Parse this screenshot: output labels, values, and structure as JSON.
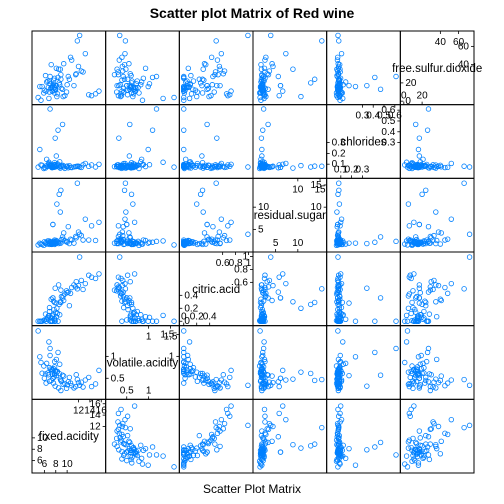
{
  "chart_data": {
    "type": "scatter",
    "title": "Scatter plot Matrix of Red wine",
    "xlabel": "Scatter Plot Matrix",
    "point_color": "#0080ff",
    "grid": false,
    "legend": "none",
    "variables": [
      {
        "name": "fixed.acidity",
        "range": [
          4.6,
          16.0
        ],
        "ticks_low": [
          6,
          8,
          10
        ],
        "ticks_high": [
          12,
          14,
          16
        ]
      },
      {
        "name": "volatile.acidity",
        "range": [
          0.12,
          1.6
        ],
        "ticks_low": [
          0.5,
          1.0
        ],
        "ticks_high": [
          1.0,
          1.5
        ]
      },
      {
        "name": "citric.acid",
        "range": [
          0.0,
          1.0
        ],
        "ticks_low": [
          0.0,
          0.2,
          0.4
        ],
        "ticks_high": [
          0.6,
          0.8,
          1.0
        ]
      },
      {
        "name": "residual.sugar",
        "range": [
          0.9,
          15.5
        ],
        "ticks_low": [
          5,
          10
        ],
        "ticks_high": [
          10,
          15
        ]
      },
      {
        "name": "chlorides",
        "range": [
          0.01,
          0.61
        ],
        "ticks_low": [
          0.1,
          0.2,
          0.3
        ],
        "ticks_high": [
          0.3,
          0.4,
          0.5,
          0.6
        ]
      },
      {
        "name": "free.sulfur.dioxide",
        "range": [
          1,
          72
        ],
        "ticks_low": [
          0,
          20
        ],
        "ticks_high": [
          40,
          60
        ]
      }
    ],
    "observations": {
      "fixed.acidity": [
        7.4,
        7.8,
        7.8,
        11.2,
        7.4,
        7.9,
        7.3,
        7.8,
        7.5,
        6.7,
        7.5,
        5.6,
        7.8,
        8.5,
        8.1,
        7.4,
        7.9,
        8.9,
        7.6,
        6.9,
        6.3,
        7.1,
        8.3,
        10.4,
        12.8,
        9.6,
        6.0,
        11.5,
        8.7,
        7.2,
        6.6,
        9.3,
        10.2,
        8.0,
        13.2,
        15.0,
        5.2,
        7.0,
        8.8,
        9.9,
        12.0,
        6.4,
        7.7,
        8.2,
        10.8,
        11.6,
        9.0,
        5.9,
        6.8,
        8.6,
        10.0,
        12.5,
        14.3,
        7.3,
        8.4,
        9.4,
        6.2,
        13.8,
        15.6,
        4.9,
        11.8,
        7.0,
        6.9,
        8.1,
        9.2,
        10.6,
        7.6,
        8.9,
        5.4,
        12.2
      ],
      "volatile.acidity": [
        0.7,
        0.88,
        0.76,
        0.28,
        0.7,
        0.66,
        0.65,
        0.58,
        0.5,
        0.58,
        0.5,
        0.615,
        0.61,
        0.28,
        0.56,
        0.59,
        0.32,
        0.22,
        0.39,
        0.43,
        0.39,
        0.71,
        0.655,
        0.52,
        0.3,
        0.38,
        0.5,
        0.31,
        0.82,
        0.45,
        0.62,
        0.36,
        0.42,
        0.67,
        0.46,
        0.37,
        0.99,
        1.02,
        0.48,
        0.27,
        0.4,
        0.84,
        0.53,
        0.64,
        0.33,
        0.58,
        0.43,
        0.78,
        1.33,
        0.61,
        0.35,
        0.41,
        0.31,
        0.69,
        1.09,
        0.55,
        0.6,
        0.52,
        0.68,
        1.58,
        0.47,
        1.18,
        0.74,
        0.93,
        0.57,
        0.39,
        0.72,
        0.45,
        0.86,
        0.34
      ],
      "citric.acid": [
        0.0,
        0.0,
        0.04,
        0.56,
        0.0,
        0.0,
        0.0,
        0.02,
        0.36,
        0.08,
        0.36,
        0.0,
        0.29,
        0.56,
        0.28,
        0.08,
        0.51,
        0.48,
        0.31,
        0.21,
        0.0,
        0.0,
        0.12,
        0.24,
        0.49,
        0.42,
        0.02,
        0.53,
        0.1,
        0.34,
        0.05,
        0.39,
        0.45,
        0.14,
        0.58,
        0.66,
        0.0,
        0.06,
        0.3,
        0.47,
        0.55,
        0.03,
        0.18,
        0.2,
        0.52,
        0.61,
        0.38,
        0.01,
        0.09,
        0.26,
        0.44,
        0.63,
        0.68,
        0.05,
        0.0,
        0.32,
        0.11,
        0.71,
        0.73,
        0.0,
        0.5,
        0.0,
        0.15,
        0.07,
        0.36,
        0.43,
        0.1,
        0.29,
        0.0,
        0.99
      ],
      "residual.sugar": [
        1.9,
        2.6,
        2.3,
        1.9,
        1.9,
        1.8,
        1.6,
        2.0,
        6.1,
        1.8,
        6.1,
        1.6,
        1.6,
        1.8,
        1.9,
        2.0,
        1.8,
        1.9,
        2.3,
        1.6,
        2.1,
        1.9,
        2.2,
        1.8,
        2.6,
        2.4,
        2.2,
        3.4,
        2.0,
        1.7,
        2.4,
        2.8,
        5.6,
        2.2,
        7.3,
        2.5,
        1.9,
        2.1,
        8.9,
        2.3,
        4.4,
        1.7,
        2.0,
        10.7,
        2.6,
        3.1,
        2.7,
        1.4,
        2.4,
        12.9,
        2.1,
        3.6,
        5.8,
        1.8,
        2.1,
        4.2,
        1.9,
        2.6,
        6.6,
        1.5,
        15.4,
        2.3,
        1.9,
        2.5,
        3.3,
        2.8,
        2.0,
        13.8,
        1.7,
        3.9
      ],
      "chlorides": [
        0.076,
        0.098,
        0.092,
        0.075,
        0.076,
        0.075,
        0.069,
        0.073,
        0.071,
        0.097,
        0.071,
        0.089,
        0.114,
        0.092,
        0.176,
        0.068,
        0.341,
        0.077,
        0.082,
        0.106,
        0.084,
        0.08,
        0.103,
        0.086,
        0.094,
        0.061,
        0.071,
        0.078,
        0.122,
        0.09,
        0.079,
        0.088,
        0.067,
        0.083,
        0.107,
        0.074,
        0.236,
        0.095,
        0.064,
        0.078,
        0.081,
        0.145,
        0.072,
        0.087,
        0.069,
        0.079,
        0.091,
        0.06,
        0.118,
        0.074,
        0.083,
        0.07,
        0.093,
        0.084,
        0.415,
        0.076,
        0.065,
        0.08,
        0.099,
        0.073,
        0.081,
        0.611,
        0.087,
        0.078,
        0.468,
        0.071,
        0.086,
        0.082,
        0.093,
        0.074
      ],
      "free.sulfur.dioxide": [
        11,
        25,
        15,
        17,
        11,
        13,
        15,
        15,
        17,
        15,
        17,
        16,
        9,
        35,
        17,
        16,
        17,
        29,
        23,
        10,
        11,
        14,
        8,
        24,
        32,
        6,
        12,
        29,
        18,
        40,
        22,
        5,
        27,
        13,
        52,
        8,
        16,
        19,
        35,
        10,
        38,
        21,
        12,
        5,
        45,
        30,
        14,
        9,
        3,
        20,
        18,
        33,
        6,
        15,
        26,
        41,
        28,
        7,
        11,
        4,
        66,
        27,
        22,
        36,
        13,
        48,
        19,
        24,
        1,
        72
      ]
    }
  }
}
